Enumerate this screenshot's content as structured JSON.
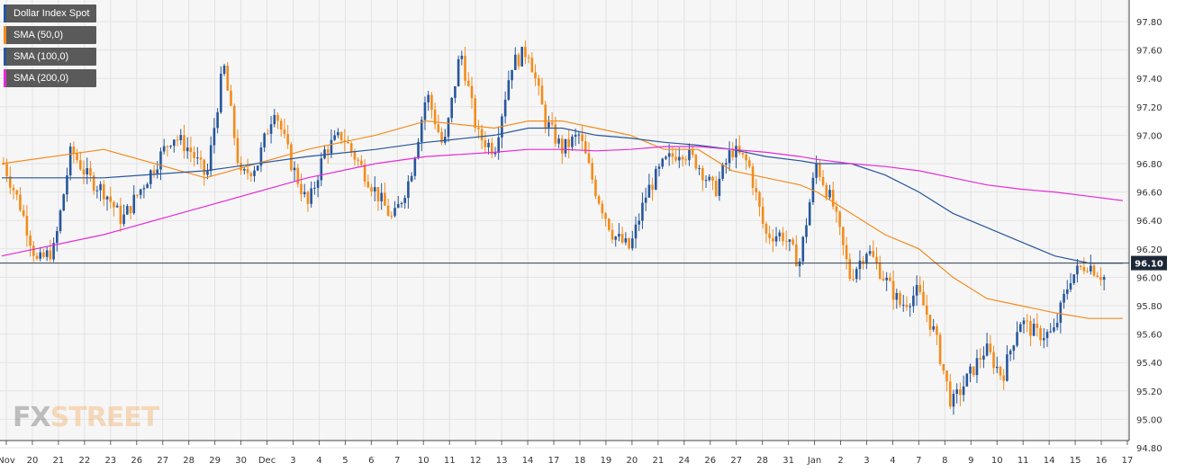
{
  "legend": {
    "items": [
      {
        "label": "Dollar Index Spot",
        "color": "#27569b"
      },
      {
        "label": "SMA (50,0)",
        "color": "#f28c1c"
      },
      {
        "label": "SMA (100,0)",
        "color": "#27569b"
      },
      {
        "label": "SMA (200,0)",
        "color": "#e62ad7"
      }
    ]
  },
  "watermark": {
    "part1": "FX",
    "part2": "STREET"
  },
  "colors": {
    "up": "#27569b",
    "down": "#f28c1c",
    "sma50": "#f28c1c",
    "sma100": "#27569b",
    "sma200": "#e62ad7",
    "grid": "#e3e3e3",
    "bg": "#f6f6f6",
    "price_line": "#2f3d52"
  },
  "chart_data": {
    "type": "candlestick",
    "title": "Dollar Index Spot",
    "ylim": [
      94.8,
      97.9
    ],
    "yticks": [
      "97.80",
      "97.60",
      "97.40",
      "97.20",
      "97.00",
      "96.80",
      "96.60",
      "96.40",
      "96.20",
      "96.00",
      "95.80",
      "95.60",
      "95.40",
      "95.20",
      "95.00",
      "94.80"
    ],
    "xticks": [
      "Nov",
      "20",
      "21",
      "22",
      "23",
      "26",
      "27",
      "28",
      "29",
      "30",
      "Dec",
      "3",
      "4",
      "5",
      "6",
      "7",
      "10",
      "11",
      "12",
      "13",
      "14",
      "17",
      "18",
      "19",
      "20",
      "21",
      "24",
      "26",
      "27",
      "28",
      "31",
      "Jan",
      "2",
      "3",
      "4",
      "7",
      "8",
      "9",
      "10",
      "11",
      "14",
      "15",
      "16",
      "17"
    ],
    "current_price": 96.1,
    "current_price_label": "96.10",
    "price_path": [
      96.8,
      96.5,
      96.1,
      96.2,
      96.9,
      96.7,
      96.6,
      96.4,
      96.6,
      96.8,
      97.0,
      96.9,
      96.7,
      97.5,
      96.7,
      96.8,
      97.2,
      96.8,
      96.5,
      96.9,
      97.0,
      96.8,
      96.6,
      96.4,
      96.7,
      97.3,
      96.9,
      97.6,
      97.0,
      96.9,
      97.5,
      97.6,
      97.1,
      96.9,
      97.0,
      96.6,
      96.3,
      96.2,
      96.6,
      96.8,
      96.9,
      96.8,
      96.6,
      96.9,
      96.8,
      96.3,
      96.3,
      96.1,
      96.8,
      96.5,
      96.0,
      96.2,
      96.0,
      95.8,
      95.9,
      95.6,
      95.1,
      95.3,
      95.5,
      95.3,
      95.7,
      95.6,
      95.6,
      96.0,
      96.1,
      96.0
    ],
    "series": [
      {
        "name": "SMA (50,0)",
        "x": [
          0,
          6,
          12,
          18,
          22,
          25,
          29,
          31,
          33,
          35,
          37,
          39,
          41,
          43,
          45,
          47,
          48,
          50,
          52,
          54,
          56,
          58,
          60,
          62,
          64,
          66
        ],
        "values": [
          96.8,
          96.9,
          96.7,
          96.9,
          97.0,
          97.1,
          97.05,
          97.1,
          97.1,
          97.05,
          97.0,
          96.9,
          96.9,
          96.75,
          96.7,
          96.65,
          96.6,
          96.45,
          96.3,
          96.2,
          96.0,
          95.85,
          95.8,
          95.75,
          95.71,
          95.71
        ]
      },
      {
        "name": "SMA (100,0)",
        "x": [
          0,
          6,
          12,
          18,
          22,
          25,
          29,
          31,
          33,
          35,
          37,
          39,
          41,
          43,
          45,
          47,
          48,
          50,
          52,
          54,
          56,
          58,
          60,
          62,
          64,
          66
        ],
        "values": [
          96.7,
          96.7,
          96.75,
          96.85,
          96.9,
          96.95,
          97.0,
          97.05,
          97.05,
          97.0,
          96.98,
          96.95,
          96.93,
          96.9,
          96.85,
          96.82,
          96.8,
          96.8,
          96.72,
          96.6,
          96.45,
          96.35,
          96.25,
          96.15,
          96.1,
          96.1
        ]
      },
      {
        "name": "SMA (200,0)",
        "x": [
          0,
          6,
          12,
          18,
          22,
          25,
          29,
          31,
          33,
          35,
          37,
          39,
          41,
          43,
          45,
          47,
          48,
          50,
          52,
          54,
          56,
          58,
          60,
          62,
          64,
          66
        ],
        "values": [
          96.15,
          96.3,
          96.5,
          96.7,
          96.8,
          96.85,
          96.88,
          96.9,
          96.9,
          96.89,
          96.9,
          96.92,
          96.92,
          96.9,
          96.88,
          96.85,
          96.83,
          96.8,
          96.78,
          96.75,
          96.7,
          96.65,
          96.62,
          96.6,
          96.57,
          96.54
        ]
      }
    ],
    "grid": true,
    "legend_position": "top-left"
  }
}
